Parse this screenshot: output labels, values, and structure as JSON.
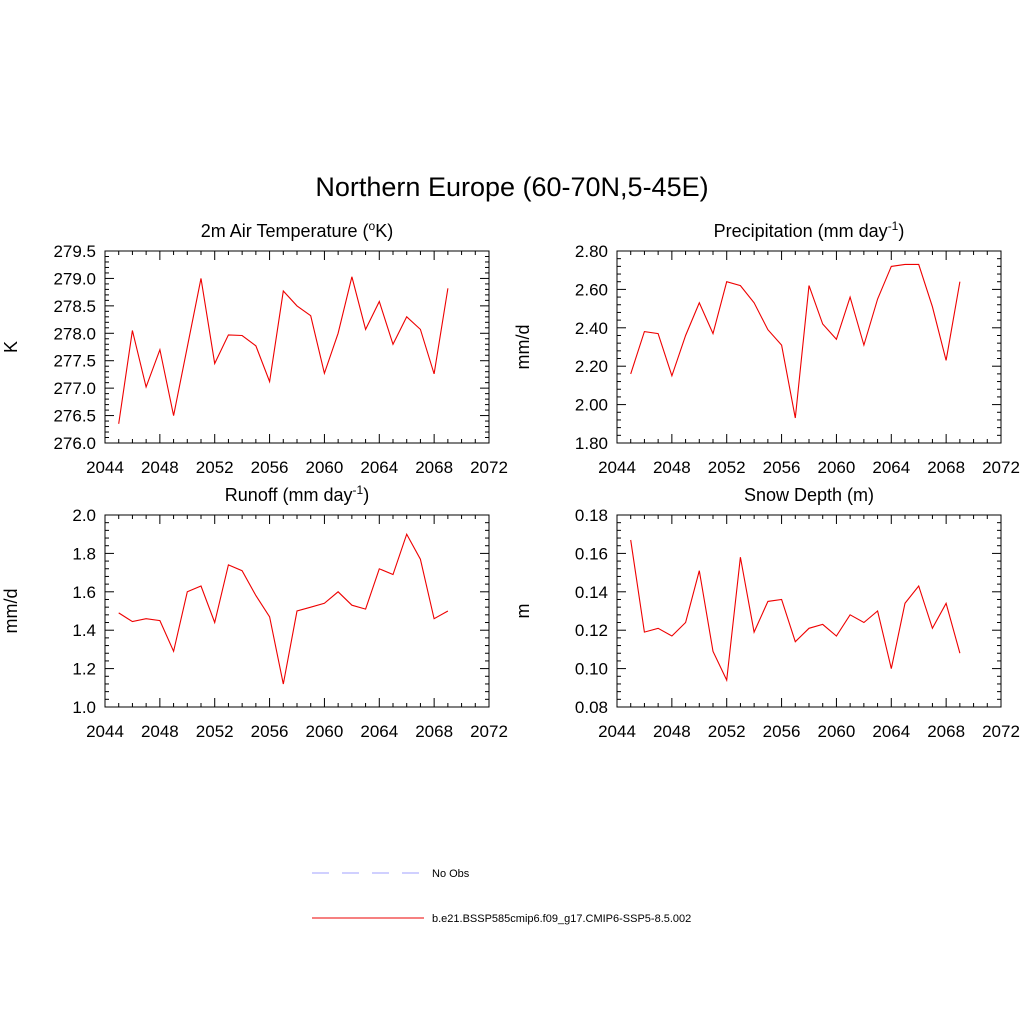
{
  "title": "Northern Europe (60-70N,5-45E)",
  "colors": {
    "model": "#ee0000",
    "obs": "#a0a0ff",
    "axis": "#000000"
  },
  "legend": {
    "placement": "bottom-center",
    "items": [
      {
        "label": "No Obs",
        "style": "dashed",
        "color": "#a0a0ff"
      },
      {
        "label": "b.e21.BSSP585cmip6.f09_g17.CMIP6-SSP5-8.5.002",
        "style": "solid",
        "color": "#ee0000"
      }
    ]
  },
  "chart_data": [
    {
      "type": "line",
      "title_main": "2m Air Temperature (",
      "title_sup_o": "o",
      "title_tail": "K)",
      "ylabel": "K",
      "xlim": [
        2044,
        2072
      ],
      "ylim": [
        276.0,
        279.5
      ],
      "xticks": [
        "2044",
        "2048",
        "2052",
        "2056",
        "2060",
        "2064",
        "2068",
        "2072"
      ],
      "yticks": [
        "276.0",
        "276.5",
        "277.0",
        "277.5",
        "278.0",
        "278.5",
        "279.0",
        "279.5"
      ],
      "x": [
        2045,
        2046,
        2047,
        2048,
        2049,
        2050,
        2051,
        2052,
        2053,
        2054,
        2055,
        2056,
        2057,
        2058,
        2059,
        2060,
        2061,
        2062,
        2063,
        2064,
        2065,
        2066,
        2067,
        2068,
        2069
      ],
      "series": [
        {
          "name": "b.e21.BSSP585cmip6.f09_g17.CMIP6-SSP5-8.5.002",
          "values": [
            276.35,
            278.05,
            277.02,
            277.7,
            276.5,
            277.75,
            279.0,
            277.45,
            277.97,
            277.96,
            277.77,
            277.12,
            278.77,
            278.5,
            278.32,
            277.27,
            278.0,
            279.03,
            278.07,
            278.58,
            277.8,
            278.3,
            278.07,
            277.26,
            278.82
          ]
        }
      ]
    },
    {
      "type": "line",
      "title_main": "Precipitation (mm day",
      "title_sup": "-1",
      "title_tail": ")",
      "ylabel": "mm/d",
      "xlim": [
        2044,
        2072
      ],
      "ylim": [
        1.8,
        2.8
      ],
      "xticks": [
        "2044",
        "2048",
        "2052",
        "2056",
        "2060",
        "2064",
        "2068",
        "2072"
      ],
      "yticks": [
        "1.80",
        "2.00",
        "2.20",
        "2.40",
        "2.60",
        "2.80"
      ],
      "x": [
        2045,
        2046,
        2047,
        2048,
        2049,
        2050,
        2051,
        2052,
        2053,
        2054,
        2055,
        2056,
        2057,
        2058,
        2059,
        2060,
        2061,
        2062,
        2063,
        2064,
        2065,
        2066,
        2067,
        2068,
        2069
      ],
      "series": [
        {
          "name": "b.e21.BSSP585cmip6.f09_g17.CMIP6-SSP5-8.5.002",
          "values": [
            2.16,
            2.38,
            2.37,
            2.15,
            2.36,
            2.53,
            2.37,
            2.64,
            2.62,
            2.53,
            2.39,
            2.31,
            1.93,
            2.62,
            2.42,
            2.34,
            2.56,
            2.31,
            2.55,
            2.72,
            2.73,
            2.73,
            2.51,
            2.23,
            2.64
          ]
        }
      ]
    },
    {
      "type": "line",
      "title_main": "Runoff (mm day",
      "title_sup": "-1",
      "title_tail": ")",
      "ylabel": "mm/d",
      "xlim": [
        2044,
        2072
      ],
      "ylim": [
        1.0,
        2.0
      ],
      "xticks": [
        "2044",
        "2048",
        "2052",
        "2056",
        "2060",
        "2064",
        "2068",
        "2072"
      ],
      "yticks": [
        "1.0",
        "1.2",
        "1.4",
        "1.6",
        "1.8",
        "2.0"
      ],
      "x": [
        2045,
        2046,
        2047,
        2048,
        2049,
        2050,
        2051,
        2052,
        2053,
        2054,
        2055,
        2056,
        2057,
        2058,
        2059,
        2060,
        2061,
        2062,
        2063,
        2064,
        2065,
        2066,
        2067,
        2068,
        2069
      ],
      "series": [
        {
          "name": "b.e21.BSSP585cmip6.f09_g17.CMIP6-SSP5-8.5.002",
          "values": [
            1.49,
            1.445,
            1.46,
            1.45,
            1.29,
            1.6,
            1.63,
            1.44,
            1.74,
            1.71,
            1.58,
            1.47,
            1.12,
            1.5,
            1.52,
            1.54,
            1.6,
            1.53,
            1.51,
            1.72,
            1.69,
            1.9,
            1.77,
            1.46,
            1.5
          ]
        }
      ]
    },
    {
      "type": "line",
      "title_main": "Snow Depth (m)",
      "title_sup": "",
      "title_tail": "",
      "ylabel": "m",
      "xlim": [
        2044,
        2072
      ],
      "ylim": [
        0.08,
        0.18
      ],
      "xticks": [
        "2044",
        "2048",
        "2052",
        "2056",
        "2060",
        "2064",
        "2068",
        "2072"
      ],
      "yticks": [
        "0.08",
        "0.10",
        "0.12",
        "0.14",
        "0.16",
        "0.18"
      ],
      "x": [
        2045,
        2046,
        2047,
        2048,
        2049,
        2050,
        2051,
        2052,
        2053,
        2054,
        2055,
        2056,
        2057,
        2058,
        2059,
        2060,
        2061,
        2062,
        2063,
        2064,
        2065,
        2066,
        2067,
        2068,
        2069
      ],
      "series": [
        {
          "name": "b.e21.BSSP585cmip6.f09_g17.CMIP6-SSP5-8.5.002",
          "values": [
            0.167,
            0.119,
            0.121,
            0.117,
            0.124,
            0.151,
            0.109,
            0.094,
            0.158,
            0.119,
            0.135,
            0.136,
            0.114,
            0.121,
            0.123,
            0.117,
            0.128,
            0.124,
            0.13,
            0.1,
            0.134,
            0.143,
            0.121,
            0.134,
            0.108
          ]
        }
      ]
    }
  ]
}
